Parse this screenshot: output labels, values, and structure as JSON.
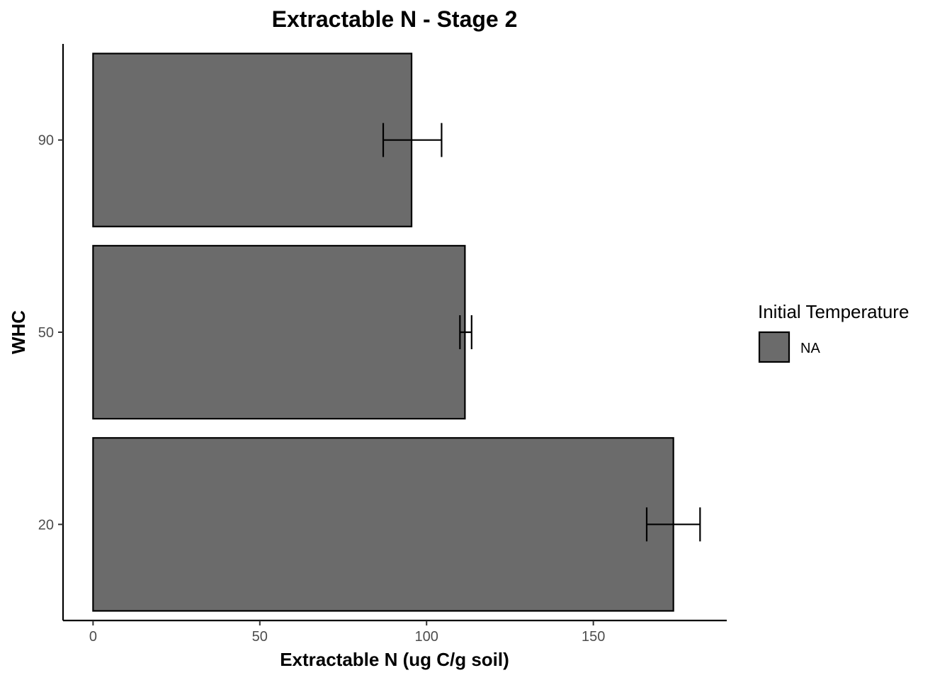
{
  "chart_data": {
    "type": "bar",
    "orientation": "horizontal",
    "title": "Extractable N - Stage 2",
    "xlabel": "Extractable N (ug C/g soil)",
    "ylabel": "WHC",
    "categories": [
      "20",
      "50",
      "90"
    ],
    "series": [
      {
        "name": "NA",
        "values": [
          174,
          111.5,
          95.5
        ],
        "error_low": [
          166,
          110,
          87
        ],
        "error_high": [
          182,
          113.5,
          104.5
        ]
      }
    ],
    "xlim": [
      -9,
      190
    ],
    "xticks": [
      "0",
      "50",
      "100",
      "150"
    ],
    "grid": false,
    "legend": {
      "title": "Initial Temperature",
      "position": "right",
      "items": [
        "NA"
      ]
    },
    "bar_fill": "#6b6b6b",
    "bar_stroke": "#000000"
  }
}
